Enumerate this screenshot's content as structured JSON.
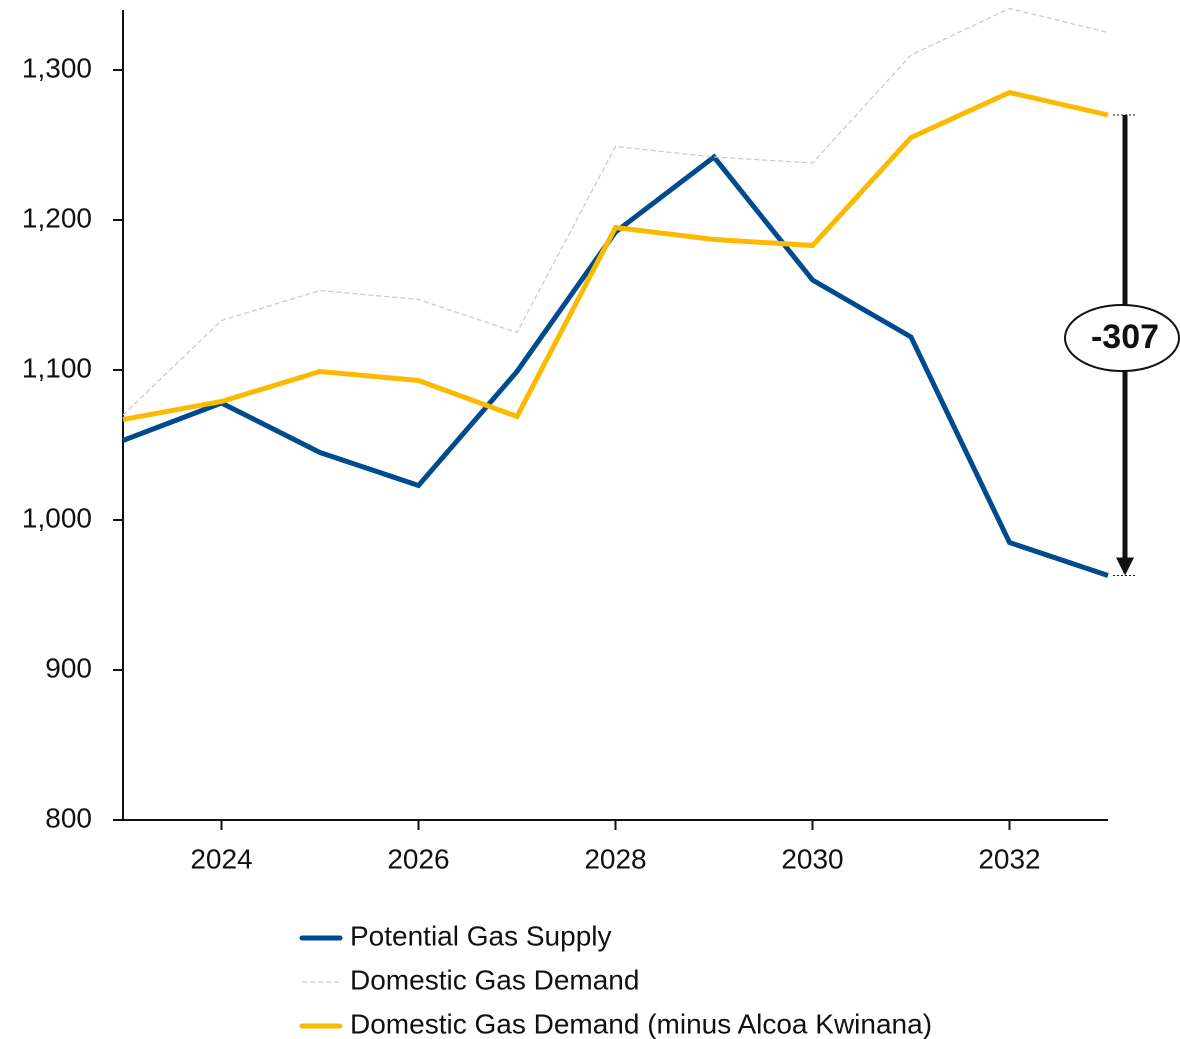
{
  "chart_data": {
    "type": "line",
    "x": [
      2023,
      2024,
      2025,
      2026,
      2027,
      2028,
      2029,
      2030,
      2031,
      2032,
      2033
    ],
    "series": [
      {
        "name": "Potential Gas Supply",
        "color": "#004a8f",
        "values": [
          1053,
          1078,
          1045,
          1023,
          1099,
          1192,
          1242,
          1160,
          1122,
          985,
          963
        ]
      },
      {
        "name": "Domestic Gas Demand",
        "color": "#c8c8c8",
        "dashed": true,
        "values": [
          1070,
          1133,
          1153,
          1147,
          1125,
          1249,
          1242,
          1238,
          1310,
          1341,
          1325
        ]
      },
      {
        "name": "Domestic Gas Demand (minus Alcoa Kwinana)",
        "color": "#fbba00",
        "values": [
          1067,
          1079,
          1099,
          1093,
          1069,
          1195,
          1187,
          1183,
          1255,
          1285,
          1270
        ]
      }
    ],
    "xlim": [
      2023,
      2033
    ],
    "xticks": [
      2024,
      2026,
      2028,
      2030,
      2032
    ],
    "ylim": [
      800,
      1340
    ],
    "yticks": [
      800,
      900,
      {
        "value": 1000,
        "label": "1,000"
      },
      {
        "value": 1100,
        "label": "1,100"
      },
      {
        "value": 1200,
        "label": "1,200"
      },
      {
        "value": 1300,
        "label": "1,300"
      }
    ],
    "annotation": "-307",
    "legend": "bottom"
  }
}
